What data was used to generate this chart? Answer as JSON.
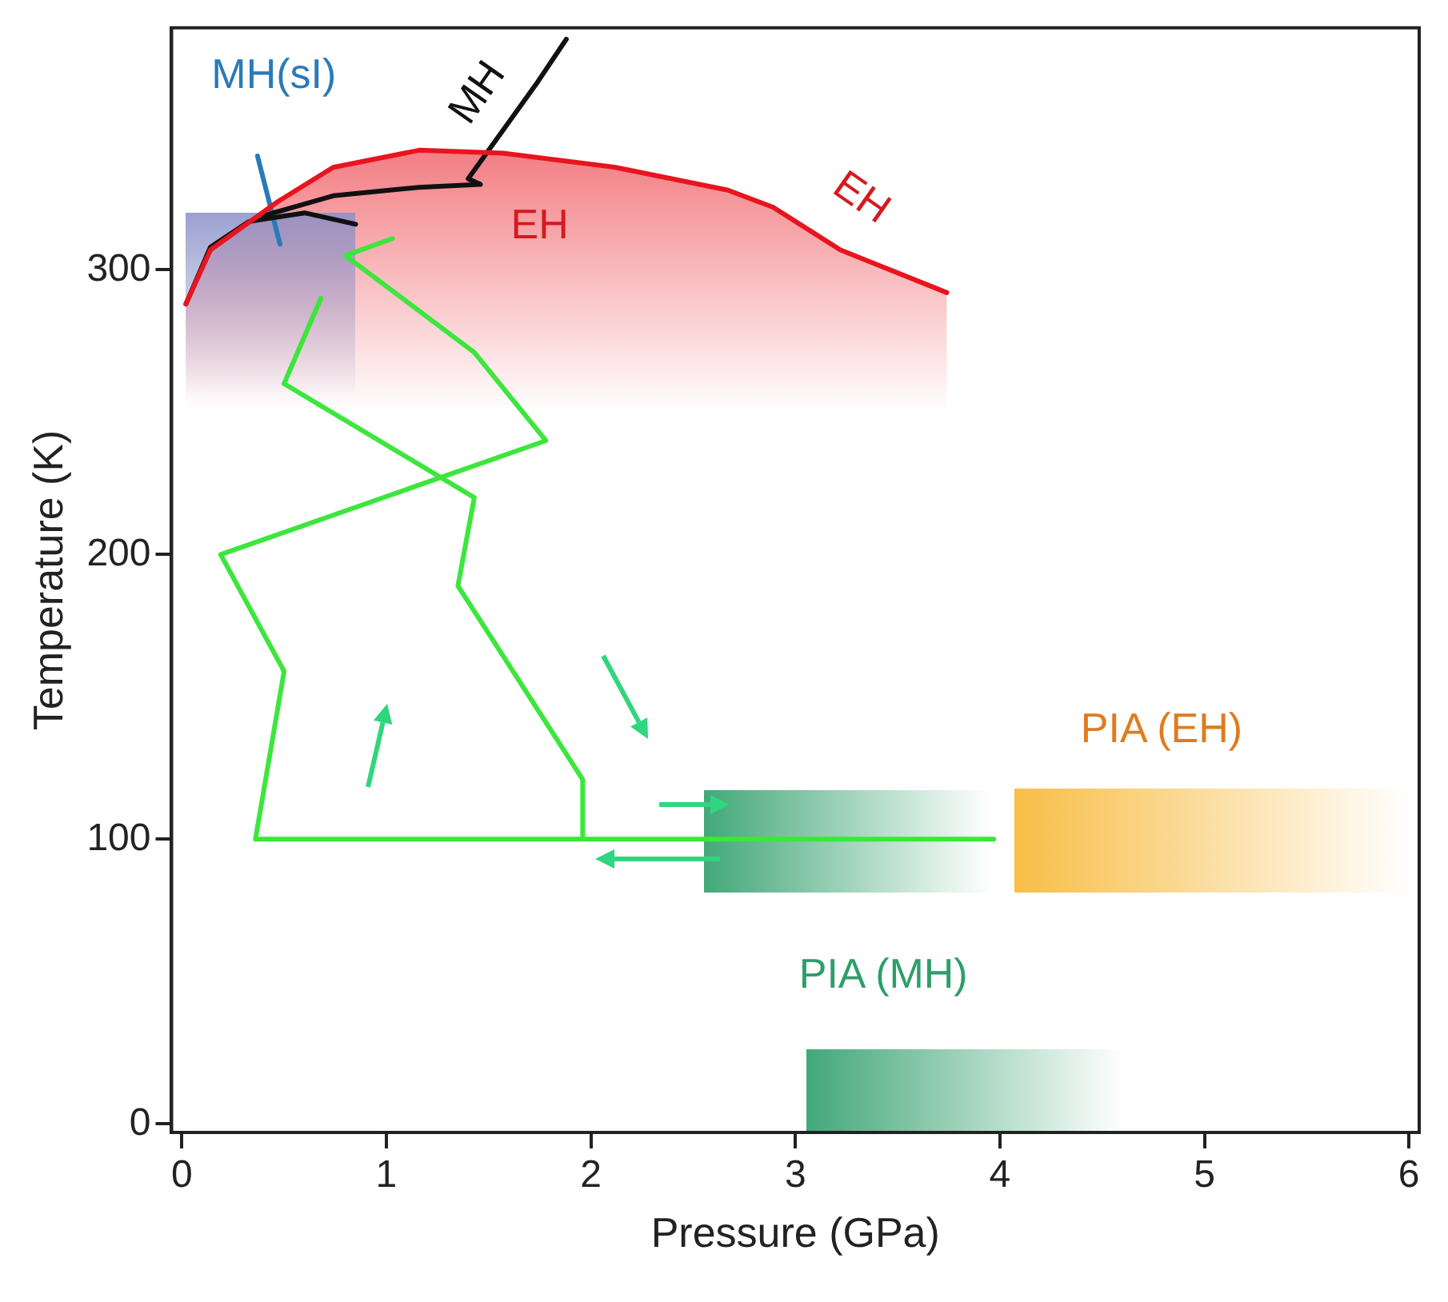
{
  "chart_data": {
    "type": "line",
    "xlabel": "Pressure (GPa)",
    "ylabel": "Temperature (K)",
    "xlim": [
      -0.05,
      6.05
    ],
    "ylim": [
      -3,
      385
    ],
    "xticks": [
      0,
      1,
      2,
      3,
      4,
      5,
      6
    ],
    "yticks": [
      0,
      100,
      200,
      300
    ],
    "grid": false,
    "legend": false,
    "marker": "none",
    "series": [
      {
        "color": "#e8141e",
        "x": [
          0.02,
          0.14,
          0.47,
          0.74,
          1.16,
          1.57,
          2.12,
          2.67,
          2.89,
          3.22,
          3.74
        ],
        "values": [
          288,
          307,
          324,
          336,
          342,
          341,
          336,
          328,
          322,
          307,
          292
        ]
      },
      {
        "color": "#111111",
        "x": [
          0.02,
          0.14,
          0.33,
          0.6,
          0.85
        ],
        "values": [
          288,
          308,
          317,
          320,
          316
        ]
      },
      {
        "color": "#111111",
        "x": [
          0.4,
          0.74,
          1.16,
          1.46,
          1.4,
          1.57,
          1.74,
          1.88
        ],
        "values": [
          319,
          326,
          329,
          330,
          332,
          349,
          366,
          381
        ]
      },
      {
        "color": "#2a7ab8",
        "x": [
          0.37,
          0.48
        ],
        "values": [
          340,
          309
        ]
      },
      {
        "color": "#3ce63c",
        "x": [
          1.03,
          0.8,
          1.43,
          1.78,
          0.19,
          0.5,
          0.36,
          3.97
        ],
        "values": [
          311,
          305,
          271,
          240,
          200,
          159,
          100,
          100
        ]
      },
      {
        "color": "#3ce63c",
        "x": [
          1.96,
          1.96,
          1.35,
          1.43,
          0.5,
          0.68
        ],
        "values": [
          100,
          121,
          189,
          220,
          260,
          290
        ]
      }
    ],
    "annotations": [
      "MH(sI)",
      "MH",
      "EH",
      "EH",
      "PIA (EH)",
      "PIA (MH)"
    ]
  }
}
